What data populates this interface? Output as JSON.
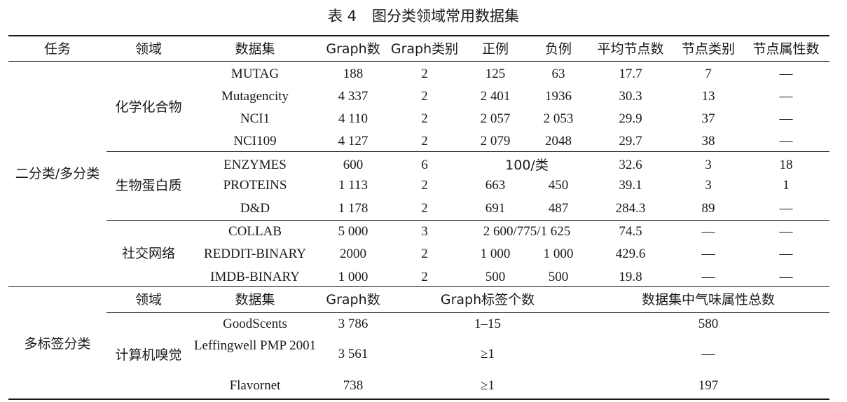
{
  "caption": {
    "number": "表 4",
    "title": "图分类领域常用数据集"
  },
  "header1": [
    "任务",
    "领域",
    "数据集",
    "Graph数",
    "Graph类别",
    "正例",
    "负例",
    "平均节点数",
    "节点类别",
    "节点属性数"
  ],
  "group1": {
    "task": "二分类/多分类",
    "domains": [
      {
        "name": "化学化合物",
        "rows": [
          {
            "dataset": "MUTAG",
            "graphs": "188",
            "classes": "2",
            "pos": "125",
            "neg": "63",
            "avg": "17.7",
            "ncls": "7",
            "nattr": "—"
          },
          {
            "dataset": "Mutagencity",
            "graphs": "4 337",
            "classes": "2",
            "pos": "2 401",
            "neg": "1936",
            "avg": "30.3",
            "ncls": "13",
            "nattr": "—"
          },
          {
            "dataset": "NCI1",
            "graphs": "4 110",
            "classes": "2",
            "pos": "2 057",
            "neg": "2 053",
            "avg": "29.9",
            "ncls": "37",
            "nattr": "—"
          },
          {
            "dataset": "NCI109",
            "graphs": "4 127",
            "classes": "2",
            "pos": "2 079",
            "neg": "2048",
            "avg": "29.7",
            "ncls": "38",
            "nattr": "—"
          }
        ]
      },
      {
        "name": "生物蛋白质",
        "rows": [
          {
            "dataset": "ENZYMES",
            "graphs": "600",
            "classes": "6",
            "posneg": "100/类",
            "avg": "32.6",
            "ncls": "3",
            "nattr": "18"
          },
          {
            "dataset": "PROTEINS",
            "graphs": "1 113",
            "classes": "2",
            "pos": "663",
            "neg": "450",
            "avg": "39.1",
            "ncls": "3",
            "nattr": "1"
          },
          {
            "dataset": "D&D",
            "graphs": "1 178",
            "classes": "2",
            "pos": "691",
            "neg": "487",
            "avg": "284.3",
            "ncls": "89",
            "nattr": "—"
          }
        ]
      },
      {
        "name": "社交网络",
        "rows": [
          {
            "dataset": "COLLAB",
            "graphs": "5 000",
            "classes": "3",
            "posneg": "2 600/775/1 625",
            "avg": "74.5",
            "ncls": "—",
            "nattr": "—"
          },
          {
            "dataset": "REDDIT-BINARY",
            "graphs": "2000",
            "classes": "2",
            "pos": "1 000",
            "neg": "1 000",
            "avg": "429.6",
            "ncls": "—",
            "nattr": "—"
          },
          {
            "dataset": "IMDB-BINARY",
            "graphs": "1 000",
            "classes": "2",
            "pos": "500",
            "neg": "500",
            "avg": "19.8",
            "ncls": "—",
            "nattr": "—"
          }
        ]
      }
    ]
  },
  "header2": [
    "领域",
    "数据集",
    "Graph数",
    "Graph标签个数",
    "数据集中气味属性总数"
  ],
  "group2": {
    "task": "多标签分类",
    "domain": "计算机嗅觉",
    "rows": [
      {
        "dataset": "GoodScents",
        "graphs": "3 786",
        "labels": "1–15",
        "odor": "580"
      },
      {
        "dataset": "Leffingwell PMP 2001",
        "graphs": "3 561",
        "labels": "≥1",
        "odor": "—"
      },
      {
        "dataset": "Flavornet",
        "graphs": "738",
        "labels": "≥1",
        "odor": "197"
      }
    ]
  }
}
